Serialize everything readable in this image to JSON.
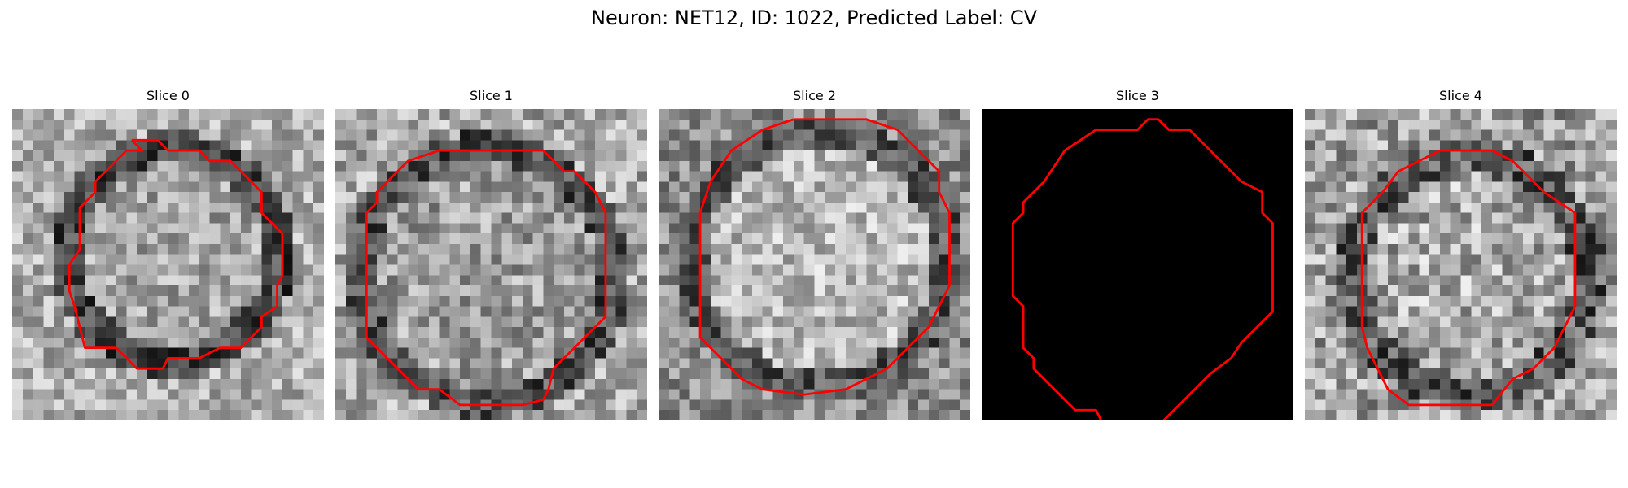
{
  "figure": {
    "title": "Neuron: NET12, ID: 1022, Predicted Label: CV"
  },
  "colors": {
    "background": "#ffffff",
    "contour": "#ff0000",
    "text": "#000000"
  },
  "image_grid": {
    "cells_per_side": 30,
    "colormap": "grayscale"
  },
  "panels": [
    {
      "title": "Slice 0",
      "image": "grayscale cell micrograph",
      "blank": false
    },
    {
      "title": "Slice 1",
      "image": "grayscale cell micrograph",
      "blank": false
    },
    {
      "title": "Slice 2",
      "image": "grayscale cell micrograph",
      "blank": false
    },
    {
      "title": "Slice 3",
      "image": "black (empty slice)",
      "blank": true
    },
    {
      "title": "Slice 4",
      "image": "grayscale cell micrograph",
      "blank": false
    }
  ]
}
